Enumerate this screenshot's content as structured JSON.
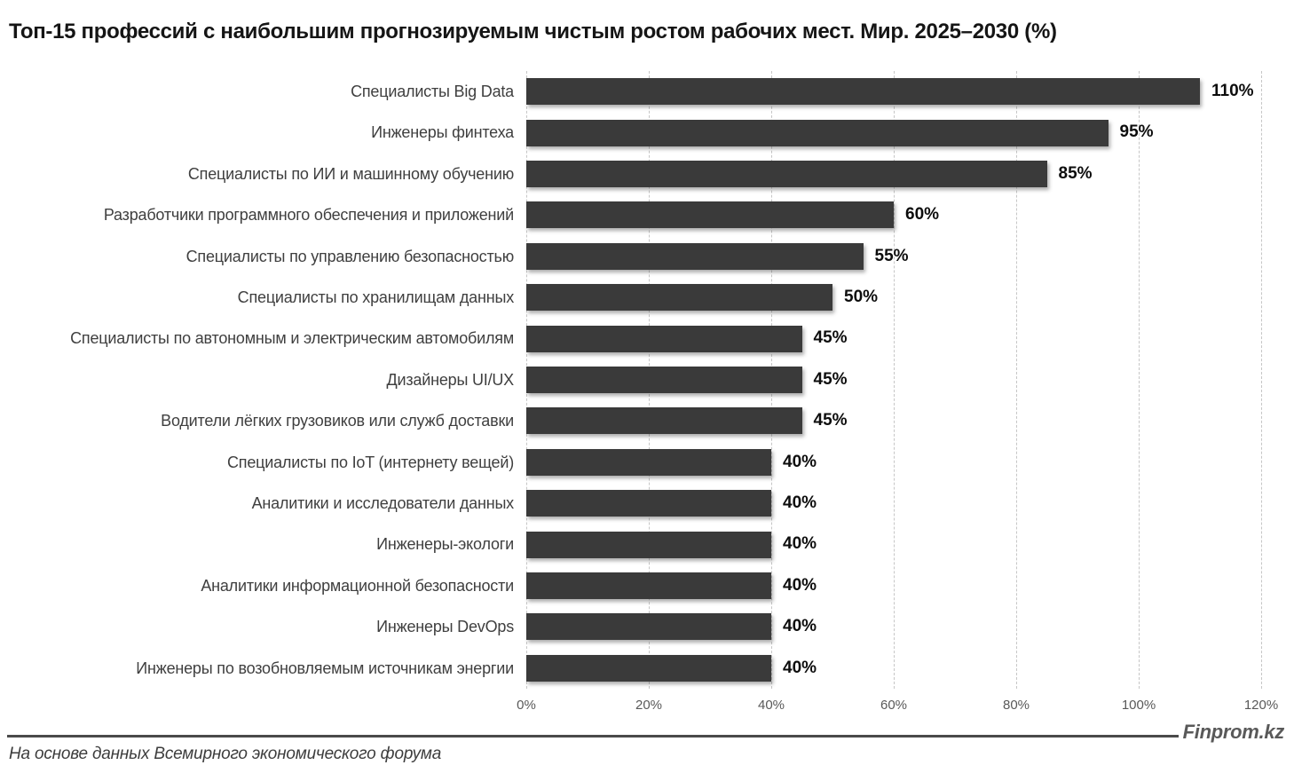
{
  "footer": {
    "source_note": "На основе данных Всемирного экономического форума",
    "brand": "Finprom.kz"
  },
  "chart_data": {
    "type": "bar",
    "orientation": "horizontal",
    "title": "Топ-15 профессий с наибольшим прогнозируемым чистым ростом рабочих мест. Мир. 2025–2030 (%)",
    "categories": [
      "Специалисты Big Data",
      "Инженеры финтеха",
      "Специалисты по ИИ и машинному обучению",
      "Разработчики программного обеспечения и приложений",
      "Специалисты по управлению безопасностью",
      "Специалисты по хранилищам данных",
      "Специалисты по автономным и электрическим автомобилям",
      "Дизайнеры UI/UX",
      "Водители лёгких грузовиков или служб доставки",
      "Специалисты по IoT (интернету вещей)",
      "Аналитики и исследователи данных",
      "Инженеры-экологи",
      "Аналитики информационной безопасности",
      "Инженеры DevOps",
      "Инженеры по возобновляемым источникам энергии"
    ],
    "values": [
      110,
      95,
      85,
      60,
      55,
      50,
      45,
      45,
      45,
      40,
      40,
      40,
      40,
      40,
      40
    ],
    "value_labels": [
      "110%",
      "95%",
      "85%",
      "60%",
      "55%",
      "50%",
      "45%",
      "45%",
      "45%",
      "40%",
      "40%",
      "40%",
      "40%",
      "40%",
      "40%"
    ],
    "x_ticks": [
      "0%",
      "20%",
      "40%",
      "60%",
      "80%",
      "100%",
      "120%"
    ],
    "xlabel": "",
    "ylabel": "",
    "xlim": [
      0,
      120
    ],
    "grid": "vertical-dashed",
    "legend": "none",
    "bar_color": "#3a3a3a",
    "gridline_color": "#c6c6c6"
  }
}
